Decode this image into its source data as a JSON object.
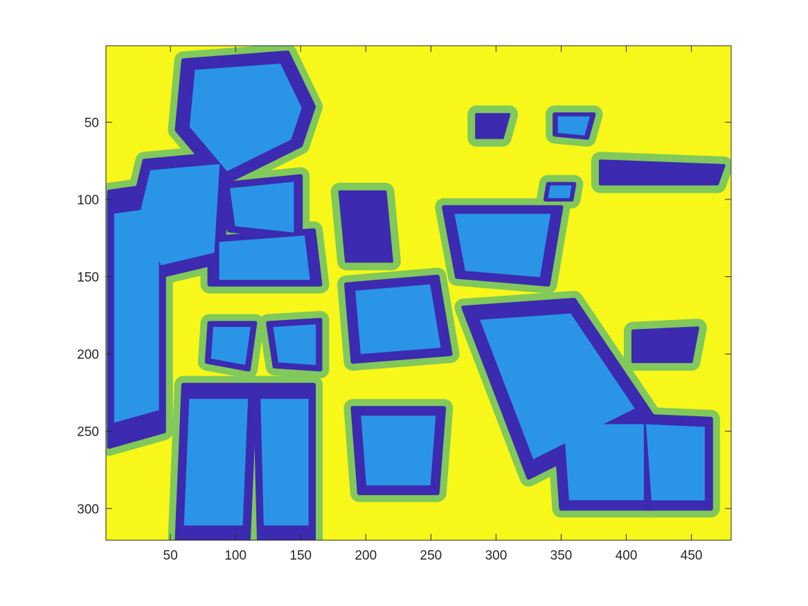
{
  "chart_data": {
    "type": "heatmap",
    "title": "",
    "xlabel": "",
    "ylabel": "",
    "xlim": [
      0.5,
      480.5
    ],
    "ylim": [
      0.5,
      320.5
    ],
    "y_reversed": true,
    "x_ticks": [
      50,
      100,
      150,
      200,
      250,
      300,
      350,
      400,
      450
    ],
    "x_tick_labels": [
      "50",
      "100",
      "150",
      "200",
      "250",
      "300",
      "350",
      "400",
      "450"
    ],
    "y_ticks": [
      50,
      100,
      150,
      200,
      250,
      300
    ],
    "y_tick_labels": [
      "50",
      "100",
      "150",
      "200",
      "250",
      "300"
    ],
    "grid": false,
    "legend": "none",
    "colormap": [
      "#3c2ab0",
      "#2a95e6",
      "#80c95a",
      "#f8f71a"
    ],
    "background_class_color": "#f8f71a",
    "regions": [
      {
        "class": 1,
        "x": [
          3,
          45,
          45,
          3
        ],
        "y": [
          95,
          90,
          250,
          260
        ],
        "outline": true
      },
      {
        "class": 1,
        "x": [
          60,
          140,
          160,
          150,
          90,
          55
        ],
        "y": [
          10,
          5,
          40,
          65,
          90,
          55
        ],
        "outline": true
      },
      {
        "class": 1,
        "x": [
          30,
          95,
          90,
          40,
          20
        ],
        "y": [
          75,
          70,
          140,
          150,
          110
        ],
        "outline": true
      },
      {
        "class": 1,
        "x": [
          80,
          160,
          165,
          80
        ],
        "y": [
          125,
          120,
          155,
          155
        ],
        "outline": true
      },
      {
        "class": 1,
        "x": [
          90,
          150,
          150,
          95
        ],
        "y": [
          90,
          85,
          125,
          120
        ],
        "outline": true
      },
      {
        "class": 1,
        "x": [
          80,
          115,
          110,
          78
        ],
        "y": [
          180,
          180,
          210,
          205
        ],
        "outline": true
      },
      {
        "class": 1,
        "x": [
          125,
          165,
          165,
          130
        ],
        "y": [
          180,
          178,
          210,
          208
        ],
        "outline": true
      },
      {
        "class": 1,
        "x": [
          60,
          115,
          110,
          55
        ],
        "y": [
          220,
          220,
          320,
          320
        ],
        "outline": true
      },
      {
        "class": 1,
        "x": [
          115,
          160,
          160,
          118
        ],
        "y": [
          220,
          220,
          320,
          320
        ],
        "outline": true
      },
      {
        "class": 1,
        "x": [
          180,
          215,
          220,
          185
        ],
        "y": [
          95,
          95,
          140,
          140
        ],
        "outline": false
      },
      {
        "class": 1,
        "x": [
          185,
          255,
          265,
          190
        ],
        "y": [
          155,
          150,
          200,
          205
        ],
        "outline": true
      },
      {
        "class": 1,
        "x": [
          260,
          350,
          340,
          270
        ],
        "y": [
          105,
          105,
          155,
          150
        ],
        "outline": true
      },
      {
        "class": 1,
        "x": [
          340,
          360,
          358,
          338
        ],
        "y": [
          90,
          90,
          100,
          100
        ],
        "outline": true
      },
      {
        "class": 1,
        "x": [
          285,
          310,
          305,
          285
        ],
        "y": [
          45,
          45,
          60,
          60
        ],
        "outline": false
      },
      {
        "class": 1,
        "x": [
          345,
          375,
          370,
          345
        ],
        "y": [
          45,
          45,
          60,
          58
        ],
        "outline": true
      },
      {
        "class": 1,
        "x": [
          380,
          475,
          470,
          380
        ],
        "y": [
          75,
          78,
          90,
          90
        ],
        "outline": false
      },
      {
        "class": 1,
        "x": [
          190,
          260,
          255,
          195
        ],
        "y": [
          235,
          235,
          290,
          290
        ],
        "outline": true
      },
      {
        "class": 1,
        "x": [
          345,
          420,
          420,
          350
        ],
        "y": [
          240,
          240,
          300,
          300
        ],
        "outline": true
      },
      {
        "class": 1,
        "x": [
          410,
          465,
          465,
          415
        ],
        "y": [
          240,
          242,
          300,
          300
        ],
        "outline": true
      },
      {
        "class": 1,
        "x": [
          405,
          455,
          450,
          405
        ],
        "y": [
          185,
          183,
          205,
          205
        ],
        "outline": false
      },
      {
        "class": 1,
        "x": [
          275,
          360,
          420,
          325
        ],
        "y": [
          170,
          165,
          240,
          280
        ],
        "outline": true
      }
    ]
  }
}
